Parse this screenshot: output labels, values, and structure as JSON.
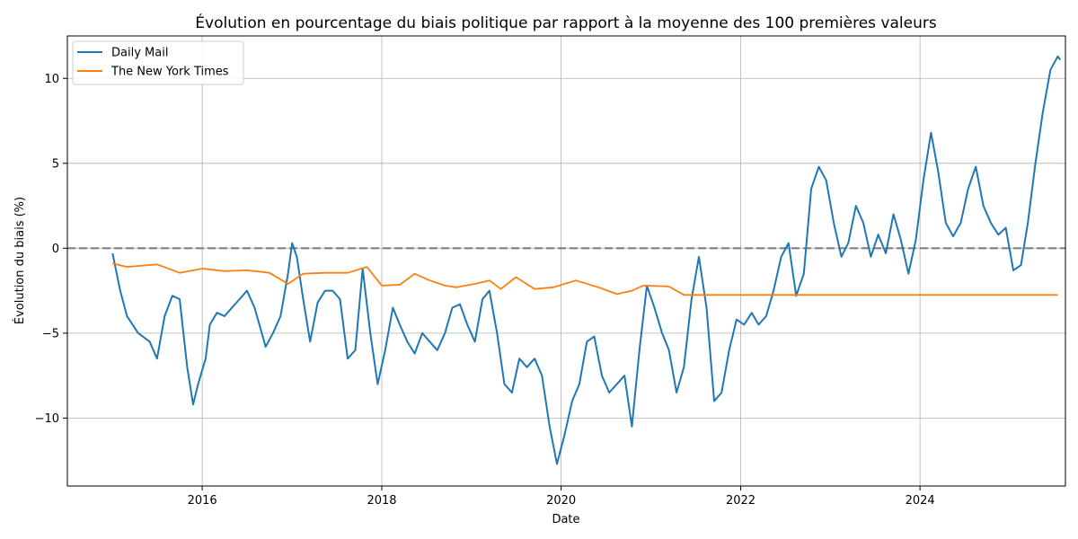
{
  "chart_data": {
    "type": "line",
    "title": "Évolution en pourcentage du biais politique par rapport à la moyenne des 100 premières valeurs",
    "xlabel": "Date",
    "ylabel": "Évolution du biais (%)",
    "xlim": [
      "2014-07-01",
      "2025-08-15"
    ],
    "ylim": [
      -14,
      12.5
    ],
    "x_ticks": [
      "2016",
      "2018",
      "2020",
      "2022",
      "2024"
    ],
    "y_ticks": [
      -10,
      -5,
      0,
      5,
      10
    ],
    "y_tick_labels": [
      "−10",
      "−5",
      "0",
      "5",
      "10"
    ],
    "grid": true,
    "legend_position": "top-left",
    "reference_line": {
      "y": 0,
      "style": "dashed",
      "color": "#808080"
    },
    "series": [
      {
        "name": "Daily Mail",
        "color": "#1f77b4",
        "points": [
          [
            "2015-01-01",
            -0.3
          ],
          [
            "2015-02-01",
            -2.5
          ],
          [
            "2015-03-01",
            -4.0
          ],
          [
            "2015-04-15",
            -5.0
          ],
          [
            "2015-06-01",
            -5.5
          ],
          [
            "2015-07-01",
            -6.5
          ],
          [
            "2015-08-01",
            -4.0
          ],
          [
            "2015-09-01",
            -2.8
          ],
          [
            "2015-10-01",
            -3.0
          ],
          [
            "2015-11-01",
            -7.0
          ],
          [
            "2015-11-25",
            -9.2
          ],
          [
            "2015-12-15",
            -8.0
          ],
          [
            "2016-01-15",
            -6.5
          ],
          [
            "2016-02-01",
            -4.5
          ],
          [
            "2016-03-01",
            -3.8
          ],
          [
            "2016-04-01",
            -4.0
          ],
          [
            "2016-05-01",
            -3.5
          ],
          [
            "2016-06-01",
            -3.0
          ],
          [
            "2016-07-01",
            -2.5
          ],
          [
            "2016-08-01",
            -3.5
          ],
          [
            "2016-09-15",
            -5.8
          ],
          [
            "2016-10-15",
            -5.0
          ],
          [
            "2016-11-15",
            -4.0
          ],
          [
            "2016-12-15",
            -1.5
          ],
          [
            "2017-01-01",
            0.3
          ],
          [
            "2017-01-20",
            -0.5
          ],
          [
            "2017-02-15",
            -3.0
          ],
          [
            "2017-03-15",
            -5.5
          ],
          [
            "2017-04-15",
            -3.2
          ],
          [
            "2017-05-15",
            -2.5
          ],
          [
            "2017-06-15",
            -2.5
          ],
          [
            "2017-07-15",
            -3.0
          ],
          [
            "2017-08-15",
            -6.5
          ],
          [
            "2017-09-15",
            -6.0
          ],
          [
            "2017-10-15",
            -1.2
          ],
          [
            "2017-11-15",
            -5.0
          ],
          [
            "2017-12-15",
            -8.0
          ],
          [
            "2018-01-15",
            -6.0
          ],
          [
            "2018-02-15",
            -3.5
          ],
          [
            "2018-03-15",
            -4.5
          ],
          [
            "2018-04-15",
            -5.5
          ],
          [
            "2018-05-15",
            -6.2
          ],
          [
            "2018-06-15",
            -5.0
          ],
          [
            "2018-07-15",
            -5.5
          ],
          [
            "2018-08-15",
            -6.0
          ],
          [
            "2018-09-15",
            -5.0
          ],
          [
            "2018-10-15",
            -3.5
          ],
          [
            "2018-11-15",
            -3.3
          ],
          [
            "2018-12-15",
            -4.5
          ],
          [
            "2019-01-15",
            -5.5
          ],
          [
            "2019-02-15",
            -3.0
          ],
          [
            "2019-03-15",
            -2.5
          ],
          [
            "2019-04-15",
            -5.0
          ],
          [
            "2019-05-15",
            -8.0
          ],
          [
            "2019-06-15",
            -8.5
          ],
          [
            "2019-07-15",
            -6.5
          ],
          [
            "2019-08-15",
            -7.0
          ],
          [
            "2019-09-15",
            -6.5
          ],
          [
            "2019-10-15",
            -7.5
          ],
          [
            "2019-11-15",
            -10.5
          ],
          [
            "2019-12-15",
            -12.7
          ],
          [
            "2020-01-15",
            -11.0
          ],
          [
            "2020-02-15",
            -9.0
          ],
          [
            "2020-03-15",
            -8.0
          ],
          [
            "2020-04-15",
            -5.5
          ],
          [
            "2020-05-15",
            -5.2
          ],
          [
            "2020-06-15",
            -7.5
          ],
          [
            "2020-07-15",
            -8.5
          ],
          [
            "2020-08-15",
            -8.0
          ],
          [
            "2020-09-15",
            -7.5
          ],
          [
            "2020-10-15",
            -10.5
          ],
          [
            "2020-11-15",
            -6.0
          ],
          [
            "2020-12-15",
            -2.2
          ],
          [
            "2021-01-15",
            -3.5
          ],
          [
            "2021-02-15",
            -5.0
          ],
          [
            "2021-03-15",
            -6.0
          ],
          [
            "2021-04-15",
            -8.5
          ],
          [
            "2021-05-15",
            -7.0
          ],
          [
            "2021-06-15",
            -3.0
          ],
          [
            "2021-07-15",
            -0.5
          ],
          [
            "2021-08-15",
            -3.5
          ],
          [
            "2021-09-15",
            -9.0
          ],
          [
            "2021-10-15",
            -8.5
          ],
          [
            "2021-11-15",
            -6.0
          ],
          [
            "2021-12-15",
            -4.2
          ],
          [
            "2022-01-15",
            -4.5
          ],
          [
            "2022-02-15",
            -3.8
          ],
          [
            "2022-03-15",
            -4.5
          ],
          [
            "2022-04-15",
            -4.0
          ],
          [
            "2022-05-15",
            -2.5
          ],
          [
            "2022-06-15",
            -0.5
          ],
          [
            "2022-07-15",
            0.3
          ],
          [
            "2022-08-15",
            -2.8
          ],
          [
            "2022-09-15",
            -1.5
          ],
          [
            "2022-10-15",
            3.5
          ],
          [
            "2022-11-15",
            4.8
          ],
          [
            "2022-12-15",
            4.0
          ],
          [
            "2023-01-15",
            1.5
          ],
          [
            "2023-02-15",
            -0.5
          ],
          [
            "2023-03-15",
            0.3
          ],
          [
            "2023-04-15",
            2.5
          ],
          [
            "2023-05-15",
            1.5
          ],
          [
            "2023-06-15",
            -0.5
          ],
          [
            "2023-07-15",
            0.8
          ],
          [
            "2023-08-15",
            -0.3
          ],
          [
            "2023-09-15",
            2.0
          ],
          [
            "2023-10-15",
            0.5
          ],
          [
            "2023-11-15",
            -1.5
          ],
          [
            "2023-12-15",
            0.5
          ],
          [
            "2024-01-15",
            4.0
          ],
          [
            "2024-02-15",
            6.8
          ],
          [
            "2024-03-15",
            4.5
          ],
          [
            "2024-04-15",
            1.5
          ],
          [
            "2024-05-15",
            0.7
          ],
          [
            "2024-06-15",
            1.5
          ],
          [
            "2024-07-15",
            3.5
          ],
          [
            "2024-08-15",
            4.8
          ],
          [
            "2024-09-15",
            2.5
          ],
          [
            "2024-10-15",
            1.5
          ],
          [
            "2024-11-15",
            0.8
          ],
          [
            "2024-12-15",
            1.2
          ],
          [
            "2025-01-15",
            -1.3
          ],
          [
            "2025-02-15",
            -1.0
          ],
          [
            "2025-03-15",
            1.5
          ],
          [
            "2025-04-15",
            5.0
          ],
          [
            "2025-05-15",
            8.0
          ],
          [
            "2025-06-15",
            10.5
          ],
          [
            "2025-07-15",
            11.3
          ],
          [
            "2025-07-25",
            11.1
          ]
        ]
      },
      {
        "name": "The New York Times",
        "color": "#ff7f0e",
        "points": [
          [
            "2015-01-01",
            -0.9
          ],
          [
            "2015-03-01",
            -1.1
          ],
          [
            "2015-07-01",
            -0.95
          ],
          [
            "2015-10-01",
            -1.45
          ],
          [
            "2016-01-01",
            -1.2
          ],
          [
            "2016-04-01",
            -1.35
          ],
          [
            "2016-07-01",
            -1.3
          ],
          [
            "2016-10-01",
            -1.45
          ],
          [
            "2016-12-15",
            -2.1
          ],
          [
            "2017-02-15",
            -1.5
          ],
          [
            "2017-05-15",
            -1.45
          ],
          [
            "2017-08-15",
            -1.45
          ],
          [
            "2017-11-01",
            -1.1
          ],
          [
            "2018-01-01",
            -2.2
          ],
          [
            "2018-03-15",
            -2.15
          ],
          [
            "2018-05-15",
            -1.5
          ],
          [
            "2018-07-15",
            -1.9
          ],
          [
            "2018-09-15",
            -2.2
          ],
          [
            "2018-11-01",
            -2.3
          ],
          [
            "2019-01-15",
            -2.1
          ],
          [
            "2019-03-15",
            -1.9
          ],
          [
            "2019-05-01",
            -2.4
          ],
          [
            "2019-07-01",
            -1.7
          ],
          [
            "2019-09-15",
            -2.4
          ],
          [
            "2019-12-01",
            -2.3
          ],
          [
            "2020-03-01",
            -1.9
          ],
          [
            "2020-06-01",
            -2.3
          ],
          [
            "2020-08-15",
            -2.7
          ],
          [
            "2020-10-15",
            -2.5
          ],
          [
            "2020-12-01",
            -2.2
          ],
          [
            "2021-03-15",
            -2.25
          ],
          [
            "2021-05-15",
            -2.75
          ],
          [
            "2022-01-01",
            -2.75
          ],
          [
            "2024-01-01",
            -2.75
          ],
          [
            "2025-07-15",
            -2.75
          ]
        ]
      }
    ]
  }
}
